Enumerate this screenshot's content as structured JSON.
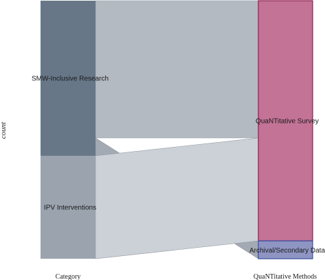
{
  "chart_data": {
    "type": "sankey",
    "ylabel": "count",
    "axes": [
      {
        "title": "Category",
        "nodes": [
          "SMW-Inclusive Research",
          "IPV Interventions"
        ]
      },
      {
        "title": "QuaNTitative Methods",
        "nodes": [
          "QuaNTitative Survey",
          "Archival/Secondary Data"
        ]
      }
    ],
    "flows": [
      {
        "source": "SMW-Inclusive Research",
        "target": "QuaNTitative Survey",
        "value": 200
      },
      {
        "source": "SMW-Inclusive Research",
        "target": "Archival/Secondary Data",
        "value": 26
      },
      {
        "source": "IPV Interventions",
        "target": "QuaNTitative Survey",
        "value": 150
      },
      {
        "source": "IPV Interventions",
        "target": "Archival/Secondary Data",
        "value": 0
      }
    ],
    "colors": {
      "category_node": [
        "#677788",
        "#9aa3ae"
      ],
      "method_node": [
        "#c37396",
        "#8e95c2"
      ],
      "method_node_stroke": [
        "#8e1a52",
        "#3a4aa0"
      ],
      "flow_from_first": "#b4bac1",
      "flow_from_second": "#ccd1d7",
      "flow_highlight": "#a3aab3"
    }
  }
}
